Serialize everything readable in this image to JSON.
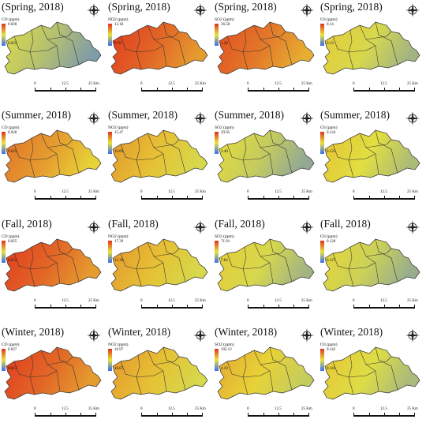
{
  "scale_bar": {
    "labels": [
      "0",
      "12.5",
      "25 Km"
    ]
  },
  "colors": {
    "high": "#e0301e",
    "mid": "#e8e43a",
    "low": "#3b6cf0",
    "boundary": "#333333"
  },
  "panels": [
    {
      "title": "(Spring, 2018)",
      "pollutant": "CO (ppm)",
      "max": "0.028",
      "min": "0.025",
      "fill_level": 0.35
    },
    {
      "title": "(Spring, 2018)",
      "pollutant": "NO2 (ppm)",
      "max": "12.18",
      "min": "9.78",
      "fill_level": 0.85
    },
    {
      "title": "(Spring, 2018)",
      "pollutant": "SO2 (ppm)",
      "max": "36.58",
      "min": "1.26",
      "fill_level": 0.8
    },
    {
      "title": "(Spring, 2018)",
      "pollutant": "O3 (ppm)",
      "max": "0.14",
      "min": "0.13",
      "fill_level": 0.45
    },
    {
      "title": "(Summer, 2018)",
      "pollutant": "CO (ppm)",
      "max": "0.028",
      "min": "0.025",
      "fill_level": 0.7
    },
    {
      "title": "(Summer, 2018)",
      "pollutant": "NO2 (ppm)",
      "max": "15.47",
      "min": "10.89",
      "fill_level": 0.6
    },
    {
      "title": "(Summer, 2018)",
      "pollutant": "SO2 (ppm)",
      "max": "29.05",
      "min": "2.40",
      "fill_level": 0.4
    },
    {
      "title": "(Summer, 2018)",
      "pollutant": "O3 (ppm)",
      "max": "0.124",
      "min": "0.123",
      "fill_level": 0.48
    },
    {
      "title": "(Fall, 2018)",
      "pollutant": "CO (ppm)",
      "max": "0.025",
      "min": "0.022",
      "fill_level": 0.85
    },
    {
      "title": "(Fall, 2018)",
      "pollutant": "NO2 (ppm)",
      "max": "17.39",
      "min": "11.36",
      "fill_level": 0.6
    },
    {
      "title": "(Fall, 2018)",
      "pollutant": "SO2 (ppm)",
      "max": "71.91",
      "min": "7.84",
      "fill_level": 0.45
    },
    {
      "title": "(Fall, 2018)",
      "pollutant": "O3 (ppm)",
      "max": "0.128",
      "min": "0.127",
      "fill_level": 0.42
    },
    {
      "title": "(Winter, 2018)",
      "pollutant": "CO (ppm)",
      "max": "0.027",
      "min": "0.023",
      "fill_level": 0.85
    },
    {
      "title": "(Winter, 2018)",
      "pollutant": "NO2 (ppm)",
      "max": "16.97",
      "min": "10.67",
      "fill_level": 0.6
    },
    {
      "title": "(Winter, 2018)",
      "pollutant": "SO2 (ppm)",
      "max": "102.12",
      "min": "4.10",
      "fill_level": 0.55
    },
    {
      "title": "(Winter, 2018)",
      "pollutant": "O3 (ppm)",
      "max": "0.142",
      "min": "0.141",
      "fill_level": 0.47
    }
  ]
}
